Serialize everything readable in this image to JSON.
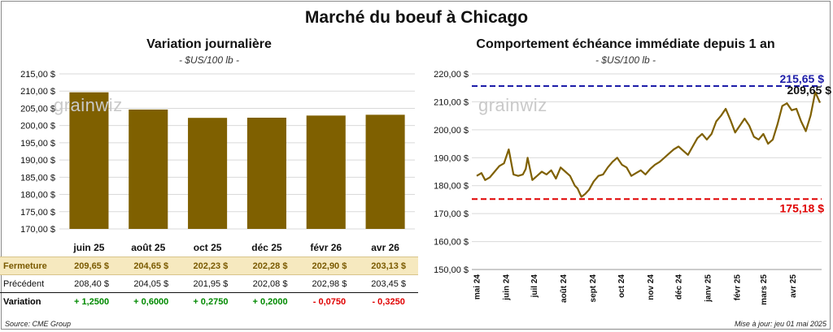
{
  "title": "Marché du boeuf à Chicago",
  "left_panel": {
    "title": "Variation  journalière",
    "subtitle": "- $US/100 lb -"
  },
  "right_panel": {
    "title": "Comportement  échéance immédiate depuis 1 an",
    "subtitle": "- $US/100 lb -"
  },
  "watermark": "grainwiz",
  "footer": {
    "source": "Source: CME Group",
    "updated": "Mise à jour: jeu 01 mai 2025"
  },
  "table": {
    "rows": [
      {
        "label": "Fermeture",
        "values": [
          "209,65  $",
          "204,65  $",
          "202,23  $",
          "202,28  $",
          "202,90  $",
          "203,13  $"
        ]
      },
      {
        "label": "Précédent",
        "values": [
          "208,40  $",
          "204,05  $",
          "201,95  $",
          "202,08  $",
          "202,98  $",
          "203,45  $"
        ]
      },
      {
        "label": "Variation",
        "values": [
          "+ 1,2500",
          "+ 0,6000",
          "+ 0,2750",
          "+ 0,2000",
          "- 0,0750",
          "- 0,3250"
        ]
      }
    ]
  },
  "colors": {
    "bar": "#7f6000",
    "line": "#7f6000",
    "high": "#1c1ca8",
    "low": "#e00000",
    "pos": "#008a00",
    "neg": "#e00000"
  },
  "chart_data": [
    {
      "type": "bar",
      "categories": [
        "juin 25",
        "août 25",
        "oct 25",
        "déc 25",
        "févr 26",
        "avr 26"
      ],
      "values": [
        209.65,
        204.65,
        202.23,
        202.28,
        202.9,
        203.13
      ],
      "ylim": [
        170,
        215
      ],
      "yticks": [
        170,
        175,
        180,
        185,
        190,
        195,
        200,
        205,
        210,
        215
      ],
      "ytick_labels": [
        "170,00 $",
        "175,00 $",
        "180,00 $",
        "185,00 $",
        "190,00 $",
        "195,00 $",
        "200,00 $",
        "205,00 $",
        "210,00 $",
        "215,00 $"
      ],
      "grid": true
    },
    {
      "type": "line",
      "ylim": [
        150,
        220
      ],
      "yticks": [
        150,
        160,
        170,
        180,
        190,
        200,
        210,
        220
      ],
      "ytick_labels": [
        "150,00 $",
        "160,00 $",
        "170,00 $",
        "180,00 $",
        "190,00 $",
        "200,00 $",
        "210,00 $",
        "220,00 $"
      ],
      "xtick_labels": [
        "mai 24",
        "juin 24",
        "juil 24",
        "août 24",
        "sept 24",
        "oct 24",
        "nov 24",
        "déc 24",
        "janv 25",
        "févr 25",
        "mars 25",
        "avr 25"
      ],
      "x": [
        "2024-05-01",
        "2024-05-06",
        "2024-05-10",
        "2024-05-15",
        "2024-05-20",
        "2024-05-25",
        "2024-05-30",
        "2024-06-04",
        "2024-06-09",
        "2024-06-14",
        "2024-06-19",
        "2024-06-22",
        "2024-06-24",
        "2024-06-29",
        "2024-07-04",
        "2024-07-09",
        "2024-07-14",
        "2024-07-19",
        "2024-07-24",
        "2024-07-29",
        "2024-08-03",
        "2024-08-08",
        "2024-08-13",
        "2024-08-16",
        "2024-08-20",
        "2024-08-24",
        "2024-08-28",
        "2024-09-02",
        "2024-09-07",
        "2024-09-12",
        "2024-09-17",
        "2024-09-22",
        "2024-09-27",
        "2024-10-02",
        "2024-10-07",
        "2024-10-12",
        "2024-10-17",
        "2024-10-22",
        "2024-10-27",
        "2024-11-01",
        "2024-11-06",
        "2024-11-11",
        "2024-11-16",
        "2024-11-21",
        "2024-11-26",
        "2024-12-01",
        "2024-12-06",
        "2024-12-11",
        "2024-12-16",
        "2024-12-21",
        "2024-12-26",
        "2024-12-31",
        "2025-01-05",
        "2025-01-10",
        "2025-01-15",
        "2025-01-20",
        "2025-01-25",
        "2025-01-30",
        "2025-02-04",
        "2025-02-09",
        "2025-02-14",
        "2025-02-19",
        "2025-02-24",
        "2025-03-01",
        "2025-03-06",
        "2025-03-11",
        "2025-03-16",
        "2025-03-21",
        "2025-03-26",
        "2025-03-31",
        "2025-04-05",
        "2025-04-10",
        "2025-04-15",
        "2025-04-20",
        "2025-04-25",
        "2025-04-30"
      ],
      "y": [
        183.5,
        184.5,
        182.0,
        183.0,
        185.0,
        187.0,
        188.0,
        193.0,
        184.0,
        183.5,
        184.0,
        186.0,
        190.0,
        182.0,
        183.5,
        185.0,
        184.0,
        185.5,
        182.5,
        186.5,
        185.0,
        183.5,
        180.0,
        179.0,
        176.0,
        177.0,
        178.5,
        181.5,
        183.5,
        184.0,
        186.5,
        188.5,
        190.0,
        187.5,
        186.5,
        183.5,
        184.5,
        185.5,
        184.0,
        186.0,
        187.5,
        188.5,
        190.0,
        191.5,
        193.0,
        194.0,
        192.5,
        191.0,
        194.0,
        197.0,
        198.5,
        196.5,
        198.5,
        203.0,
        205.0,
        207.5,
        203.5,
        199.0,
        201.5,
        204.0,
        201.5,
        197.5,
        196.5,
        198.5,
        195.0,
        196.5,
        202.0,
        208.5,
        209.5,
        207.0,
        207.5,
        203.0,
        199.5,
        205.0,
        213.5,
        209.65
      ],
      "hlines": [
        {
          "value": 215.65,
          "label": "215,65 $",
          "color": "#1c1ca8"
        },
        {
          "value": 175.18,
          "label": "175,18 $",
          "color": "#e00000"
        }
      ],
      "last_label": "209,65 $",
      "grid": true
    }
  ]
}
